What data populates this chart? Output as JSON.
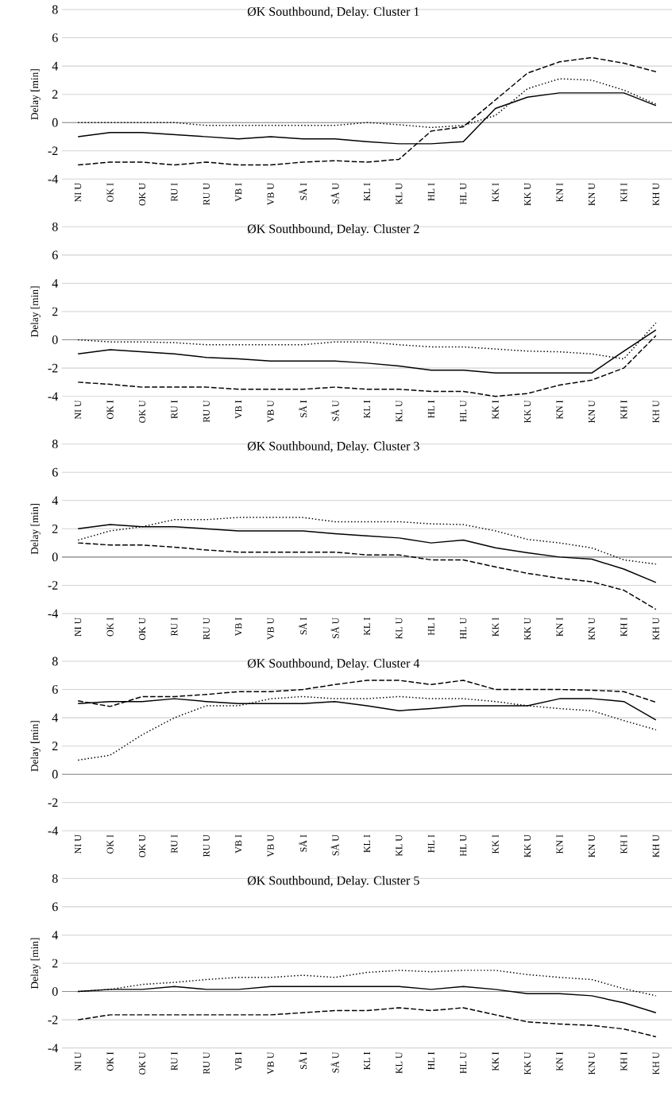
{
  "chart_data": [
    {
      "type": "line",
      "title": "ØK Southbound, Delay. Cluster 1",
      "ylabel": "Delay [min]",
      "categories": [
        "NI U",
        "OK I",
        "OK U",
        "RU I",
        "RU U",
        "VB I",
        "VB U",
        "SÅ I",
        "SÅ U",
        "KL I",
        "KL U",
        "HL I",
        "HL U",
        "KK I",
        "KK U",
        "KN I",
        "KN U",
        "KH I",
        "KH U"
      ],
      "ylim": [
        -4,
        8
      ],
      "yticks": [
        -4,
        -2,
        0,
        2,
        4,
        6,
        8
      ],
      "grid": "y",
      "series": [
        {
          "color": "#000000",
          "line_style": "solid",
          "values": [
            -1.0,
            -0.7,
            -0.7,
            -0.85,
            -1.0,
            -1.15,
            -1.0,
            -1.15,
            -1.15,
            -1.35,
            -1.5,
            -1.5,
            -1.35,
            1.0,
            1.8,
            2.1,
            2.1,
            2.1,
            1.2
          ]
        },
        {
          "color": "#000000",
          "line_style": "dashed",
          "values": [
            -3.0,
            -2.8,
            -2.8,
            -3.0,
            -2.8,
            -3.0,
            -3.0,
            -2.8,
            -2.7,
            -2.8,
            -2.6,
            -0.6,
            -0.3,
            1.6,
            3.5,
            4.3,
            4.6,
            4.2,
            3.6
          ]
        },
        {
          "color": "#000000",
          "line_style": "dotted",
          "values": [
            0,
            0,
            0,
            0,
            -0.2,
            -0.2,
            -0.2,
            -0.2,
            -0.2,
            0,
            -0.15,
            -0.35,
            -0.2,
            0.5,
            2.4,
            3.1,
            3.0,
            2.3,
            1.3
          ]
        }
      ]
    },
    {
      "type": "line",
      "title": "ØK Southbound, Delay. Cluster 2",
      "ylabel": "Delay [min]",
      "categories": [
        "NI U",
        "OK I",
        "OK U",
        "RU I",
        "RU U",
        "VB I",
        "VB U",
        "SÅ I",
        "SÅ U",
        "KL I",
        "KL U",
        "HL I",
        "HL U",
        "KK I",
        "KK U",
        "KN I",
        "KN U",
        "KH I",
        "KH U"
      ],
      "ylim": [
        -4,
        8
      ],
      "yticks": [
        -4,
        -2,
        0,
        2,
        4,
        6,
        8
      ],
      "grid": "y",
      "series": [
        {
          "color": "#000000",
          "line_style": "solid",
          "values": [
            -1.0,
            -0.7,
            -0.85,
            -1.0,
            -1.25,
            -1.35,
            -1.5,
            -1.5,
            -1.5,
            -1.65,
            -1.85,
            -2.15,
            -2.15,
            -2.35,
            -2.35,
            -2.35,
            -2.35,
            -0.8,
            0.7
          ]
        },
        {
          "color": "#000000",
          "line_style": "dashed",
          "values": [
            -3.0,
            -3.15,
            -3.35,
            -3.35,
            -3.35,
            -3.5,
            -3.5,
            -3.5,
            -3.35,
            -3.5,
            -3.5,
            -3.65,
            -3.65,
            -4.0,
            -3.8,
            -3.2,
            -2.85,
            -2.0,
            0.3
          ]
        },
        {
          "color": "#000000",
          "line_style": "dotted",
          "values": [
            0,
            -0.15,
            -0.15,
            -0.2,
            -0.35,
            -0.35,
            -0.35,
            -0.35,
            -0.15,
            -0.15,
            -0.35,
            -0.5,
            -0.5,
            -0.65,
            -0.8,
            -0.85,
            -1.0,
            -1.35,
            1.2
          ]
        }
      ]
    },
    {
      "type": "line",
      "title": "ØK Southbound, Delay. Cluster 3",
      "ylabel": "Delay [min]",
      "categories": [
        "NI U",
        "OK I",
        "OK U",
        "RU I",
        "RU U",
        "VB I",
        "VB U",
        "SÅ I",
        "SÅ U",
        "KL I",
        "KL U",
        "HL I",
        "HL U",
        "KK I",
        "KK U",
        "KN I",
        "KN U",
        "KH I",
        "KH U"
      ],
      "ylim": [
        -4,
        8
      ],
      "yticks": [
        -4,
        -2,
        0,
        2,
        4,
        6,
        8
      ],
      "grid": "y",
      "series": [
        {
          "color": "#000000",
          "line_style": "solid",
          "values": [
            2.0,
            2.3,
            2.15,
            2.15,
            2.0,
            1.85,
            1.85,
            1.85,
            1.65,
            1.5,
            1.35,
            1.0,
            1.2,
            0.65,
            0.3,
            0.0,
            -0.15,
            -0.85,
            -1.8
          ]
        },
        {
          "color": "#000000",
          "line_style": "dashed",
          "values": [
            1.0,
            0.85,
            0.85,
            0.7,
            0.5,
            0.35,
            0.35,
            0.35,
            0.35,
            0.15,
            0.15,
            -0.2,
            -0.2,
            -0.7,
            -1.15,
            -1.5,
            -1.75,
            -2.35,
            -3.7
          ]
        },
        {
          "color": "#000000",
          "line_style": "dotted",
          "values": [
            1.2,
            1.85,
            2.15,
            2.65,
            2.65,
            2.8,
            2.8,
            2.8,
            2.5,
            2.5,
            2.5,
            2.35,
            2.3,
            1.85,
            1.25,
            1.0,
            0.65,
            -0.2,
            -0.5
          ]
        }
      ]
    },
    {
      "type": "line",
      "title": "ØK Southbound, Delay. Cluster 4",
      "ylabel": "Delay [min]",
      "categories": [
        "NI U",
        "OK I",
        "OK U",
        "RU I",
        "RU U",
        "VB I",
        "VB U",
        "SÅ I",
        "SÅ U",
        "KL I",
        "KL U",
        "HL I",
        "HL U",
        "KK I",
        "KK U",
        "KN I",
        "KN U",
        "KH I",
        "KH U"
      ],
      "ylim": [
        -4,
        8
      ],
      "yticks": [
        -4,
        -2,
        0,
        2,
        4,
        6,
        8
      ],
      "grid": "y",
      "series": [
        {
          "color": "#000000",
          "line_style": "solid",
          "values": [
            5.0,
            5.15,
            5.15,
            5.35,
            5.15,
            5.0,
            5.0,
            5.0,
            5.15,
            4.85,
            4.5,
            4.65,
            4.85,
            4.85,
            4.85,
            5.35,
            5.35,
            5.15,
            3.85
          ]
        },
        {
          "color": "#000000",
          "line_style": "dashed",
          "values": [
            5.2,
            4.8,
            5.5,
            5.5,
            5.65,
            5.85,
            5.85,
            6.0,
            6.35,
            6.65,
            6.65,
            6.35,
            6.65,
            6.0,
            6.0,
            6.0,
            5.95,
            5.85,
            5.1
          ]
        },
        {
          "color": "#000000",
          "line_style": "dotted",
          "values": [
            1.0,
            1.35,
            2.8,
            4.0,
            4.85,
            4.85,
            5.35,
            5.5,
            5.35,
            5.35,
            5.5,
            5.35,
            5.35,
            5.15,
            4.85,
            4.65,
            4.5,
            3.8,
            3.15
          ]
        }
      ]
    },
    {
      "type": "line",
      "title": "ØK Southbound, Delay. Cluster 5",
      "ylabel": "Delay [min]",
      "categories": [
        "NI U",
        "OK I",
        "OK U",
        "RU I",
        "RU U",
        "VB I",
        "VB U",
        "SÅ I",
        "SÅ U",
        "KL I",
        "KL U",
        "HL I",
        "HL U",
        "KK I",
        "KK U",
        "KN I",
        "KN U",
        "KH I",
        "KH U"
      ],
      "ylim": [
        -4,
        8
      ],
      "yticks": [
        -4,
        -2,
        0,
        2,
        4,
        6,
        8
      ],
      "grid": "y",
      "series": [
        {
          "color": "#000000",
          "line_style": "solid",
          "values": [
            0,
            0.15,
            0.15,
            0.35,
            0.15,
            0.15,
            0.35,
            0.35,
            0.35,
            0.35,
            0.35,
            0.15,
            0.35,
            0.15,
            -0.15,
            -0.15,
            -0.3,
            -0.8,
            -1.5
          ]
        },
        {
          "color": "#000000",
          "line_style": "dashed",
          "values": [
            -2.0,
            -1.65,
            -1.65,
            -1.65,
            -1.65,
            -1.65,
            -1.65,
            -1.5,
            -1.35,
            -1.35,
            -1.15,
            -1.35,
            -1.15,
            -1.65,
            -2.15,
            -2.3,
            -2.4,
            -2.65,
            -3.2
          ]
        },
        {
          "color": "#000000",
          "line_style": "dotted",
          "values": [
            0,
            0.15,
            0.5,
            0.65,
            0.85,
            1.0,
            1.0,
            1.15,
            1.0,
            1.35,
            1.5,
            1.4,
            1.5,
            1.5,
            1.2,
            1.0,
            0.85,
            0.2,
            -0.3
          ]
        }
      ]
    }
  ]
}
